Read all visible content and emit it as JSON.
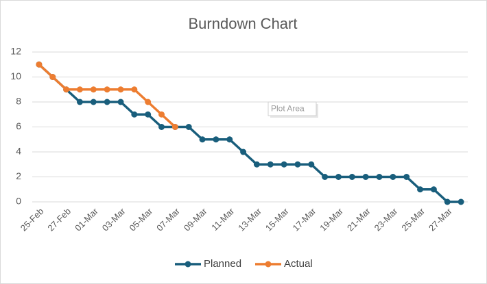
{
  "chart_data": {
    "type": "line",
    "title": "Burndown Chart",
    "categories": [
      "25-Feb",
      null,
      "27-Feb",
      null,
      "01-Mar",
      null,
      "03-Mar",
      null,
      "05-Mar",
      null,
      "07-Mar",
      null,
      "09-Mar",
      null,
      "11-Mar",
      null,
      "13-Mar",
      null,
      "15-Mar",
      null,
      "17-Mar",
      null,
      "19-Mar",
      null,
      "21-Mar",
      null,
      "23-Mar",
      null,
      "25-Mar",
      null,
      "27-Mar",
      null
    ],
    "series": [
      {
        "name": "Planned",
        "color": "#195e7c",
        "values": [
          11,
          10,
          9,
          8,
          8,
          8,
          8,
          7,
          7,
          6,
          6,
          6,
          5,
          5,
          5,
          4,
          3,
          3,
          3,
          3,
          3,
          2,
          2,
          2,
          2,
          2,
          2,
          2,
          1,
          1,
          0,
          0
        ]
      },
      {
        "name": "Actual",
        "color": "#ed7d31",
        "values": [
          11,
          10,
          9,
          9,
          9,
          9,
          9,
          9,
          8,
          7,
          6,
          null,
          null,
          null,
          null,
          null,
          null,
          null,
          null,
          null,
          null,
          null,
          null,
          null,
          null,
          null,
          null,
          null,
          null,
          null,
          null,
          null
        ]
      }
    ],
    "ylim": [
      0,
      12
    ],
    "yticks": [
      0,
      2,
      4,
      6,
      8,
      10,
      12
    ],
    "grid": true,
    "legend": "bottom",
    "tooltip": "Plot Area"
  }
}
